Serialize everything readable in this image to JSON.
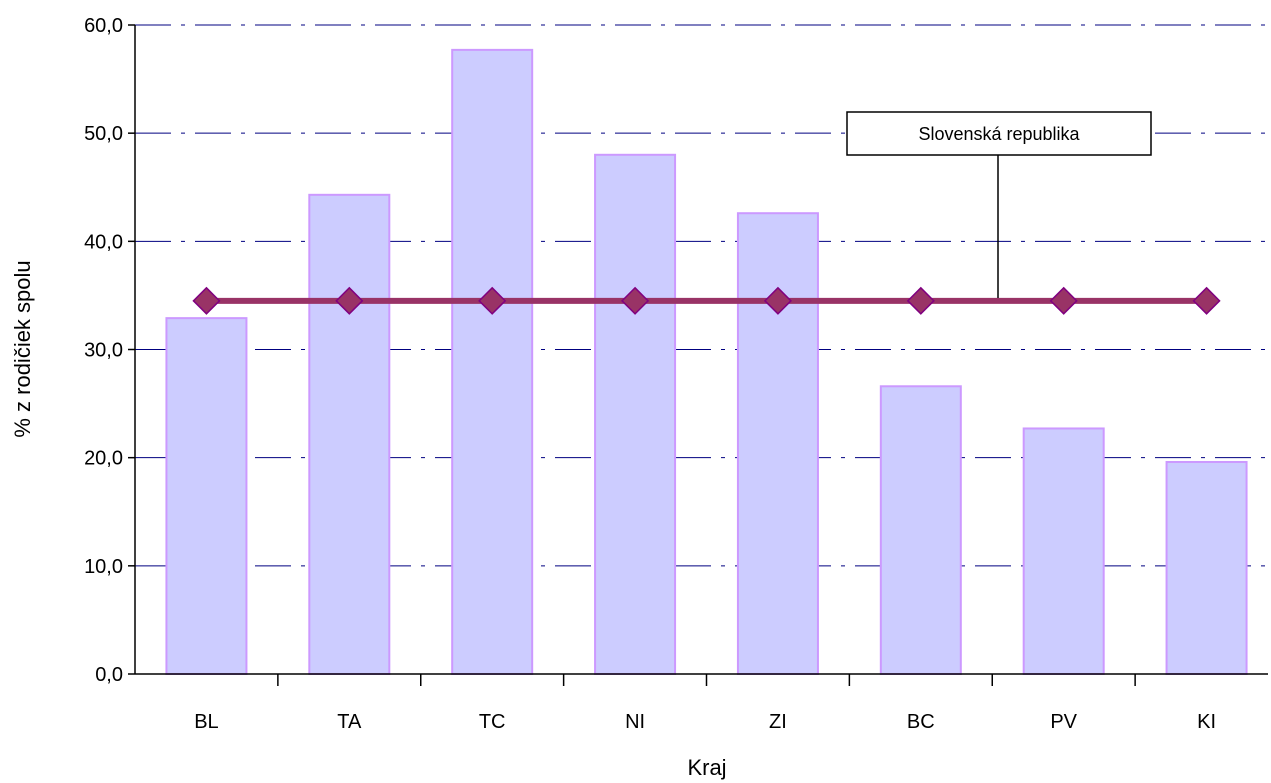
{
  "chart_data": {
    "type": "bar",
    "categories": [
      "BL",
      "TA",
      "TC",
      "NI",
      "ZI",
      "BC",
      "PV",
      "KI"
    ],
    "series": [
      {
        "type": "bar",
        "values": [
          32.9,
          44.3,
          57.7,
          48.0,
          42.6,
          26.6,
          22.7,
          19.6
        ]
      },
      {
        "type": "line",
        "values": [
          34.5,
          34.5,
          34.5,
          34.5,
          34.5,
          34.5,
          34.5,
          34.5
        ]
      }
    ],
    "ylabel": "% z rodičiek spolu",
    "xlabel": "Kraj",
    "ylim": [
      0,
      60
    ],
    "yticks": [
      0,
      10,
      20,
      30,
      40,
      50,
      60
    ],
    "ytick_labels": [
      "0,0",
      "10,0",
      "20,0",
      "30,0",
      "40,0",
      "50,0",
      "60,0"
    ],
    "annotation": "Slovenská republika",
    "grid": true,
    "colors": {
      "bar_fill": "#ccccff",
      "bar_stroke": "#cc99ff",
      "line": "#993366",
      "marker_stroke": "#800080",
      "grid": "#000080"
    }
  }
}
